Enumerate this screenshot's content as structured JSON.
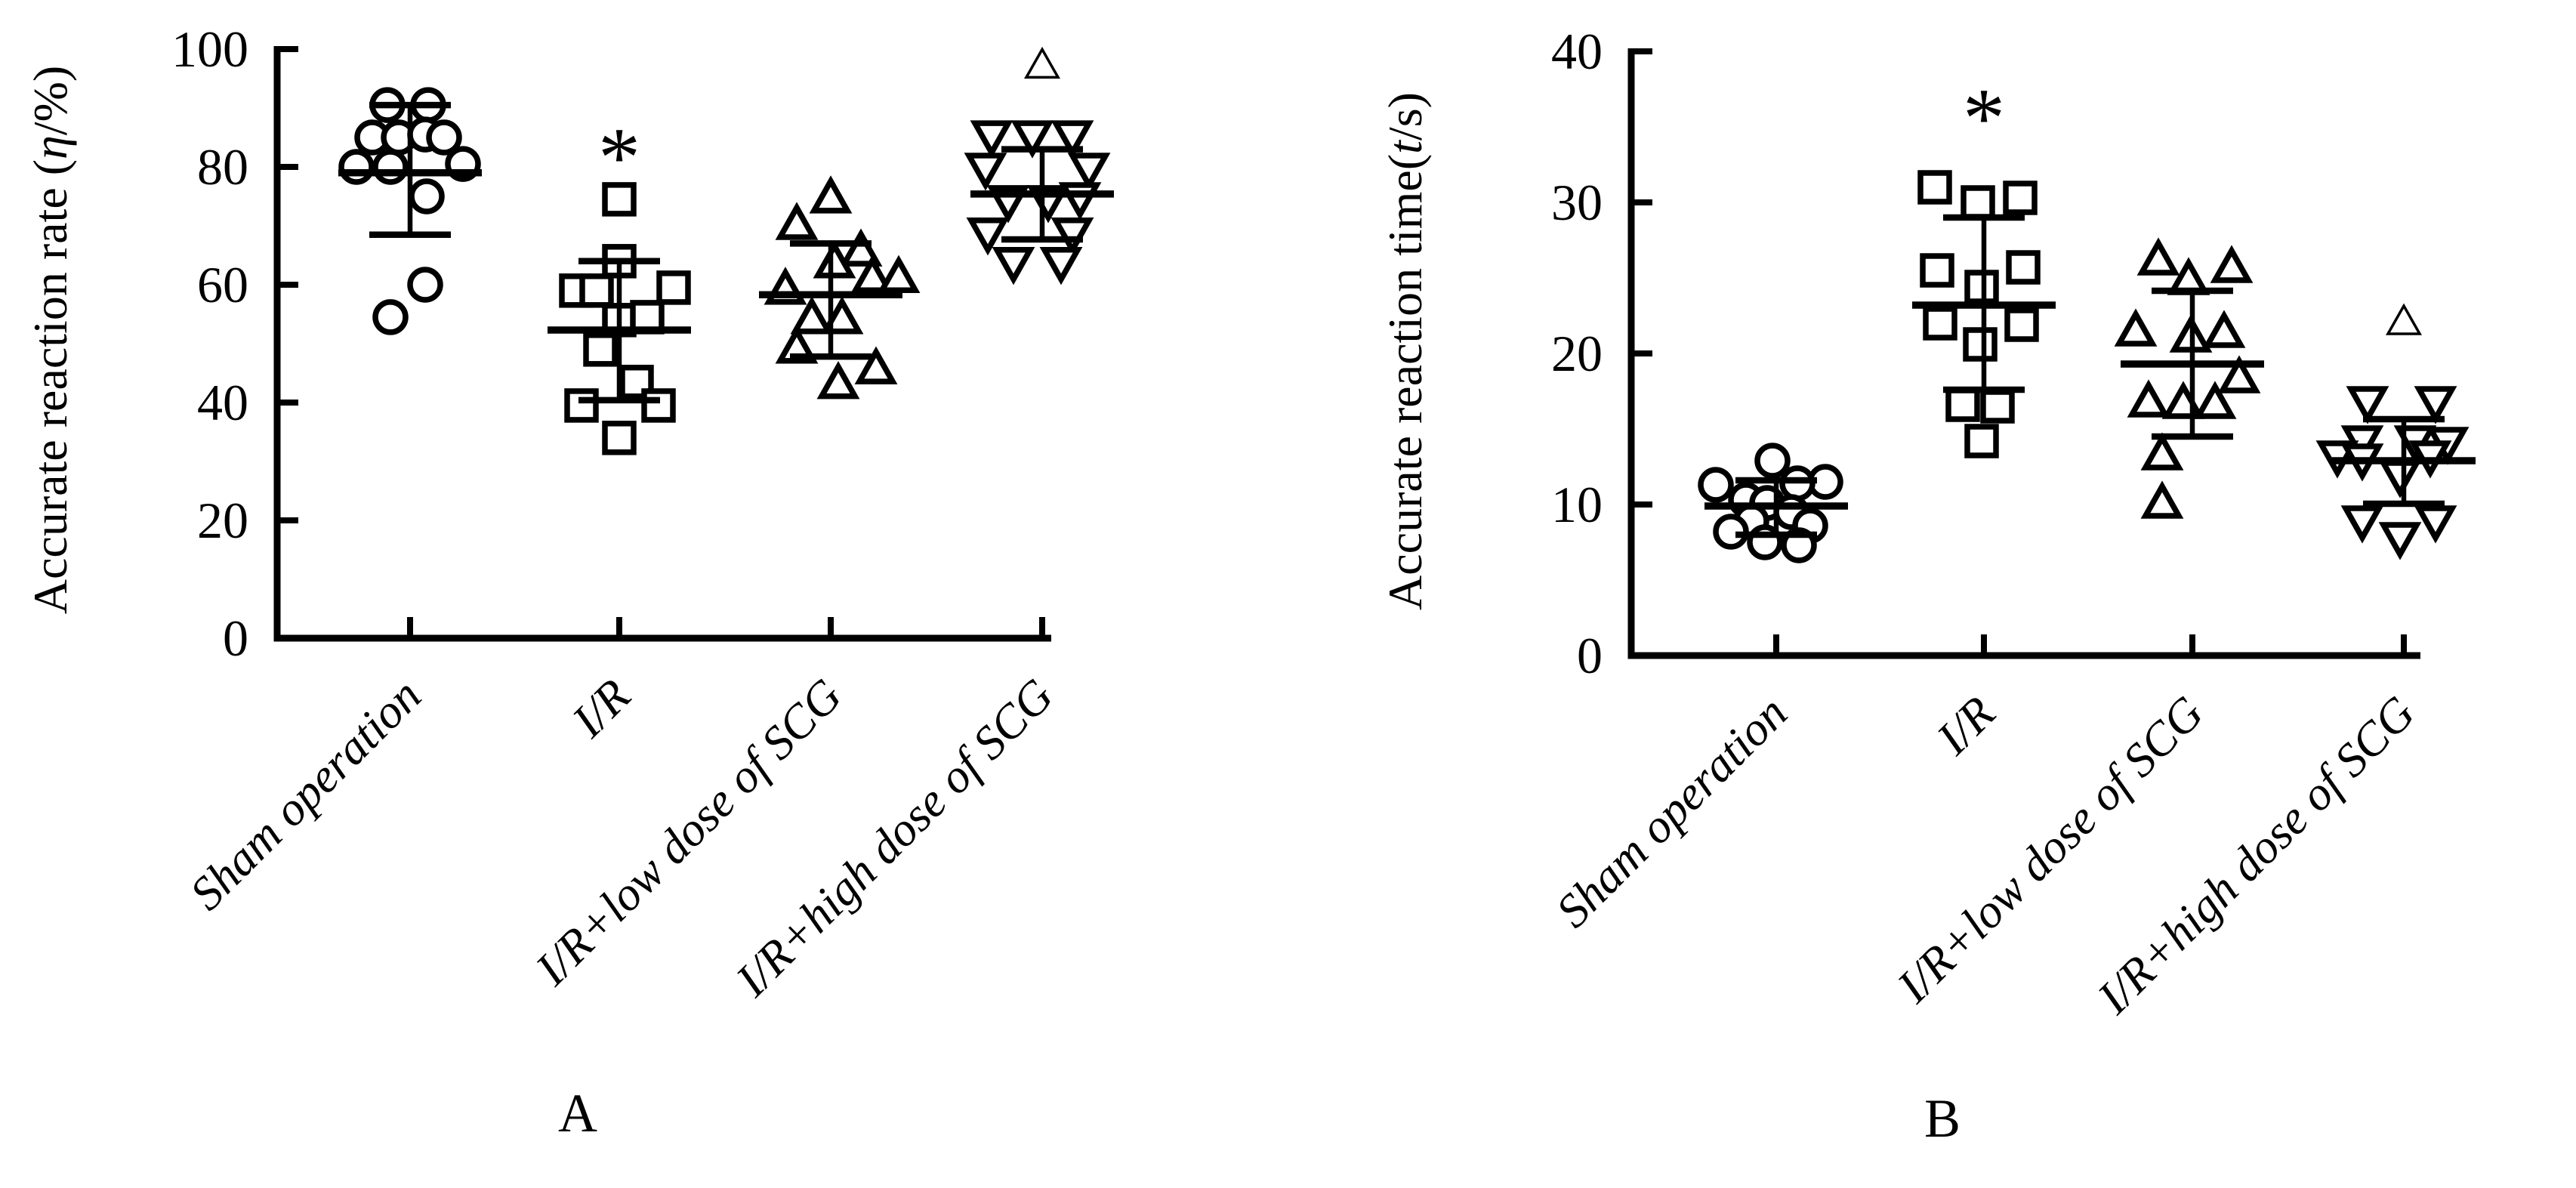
{
  "figure": {
    "background": "#ffffff",
    "ink_color": "#000000",
    "panel_letters": [
      "A",
      "B"
    ]
  },
  "chart_data": [
    {
      "type": "scatter",
      "panel_letter": "A",
      "ylabel_pre": "Accurate reaction rate (",
      "ylabel_italic": "η",
      "ylabel_post": "/%)",
      "ylim": [
        0,
        100
      ],
      "yticks": [
        0,
        20,
        40,
        60,
        80,
        100
      ],
      "grid": "off",
      "legend": "none",
      "categories": [
        "Sham operation",
        "I/R",
        "I/R+low dose of SCG",
        "I/R+high dose of SCG"
      ],
      "series": [
        {
          "name": "Sham operation",
          "marker": "circle",
          "mean": 79,
          "sd_low": 68.5,
          "sd_high": 90.5,
          "annotation": null,
          "points": [
            {
              "v": 90.5,
              "dx": -30
            },
            {
              "v": 90.5,
              "dx": 24
            },
            {
              "v": 85,
              "dx": -50
            },
            {
              "v": 85,
              "dx": -15
            },
            {
              "v": 85.5,
              "dx": 20
            },
            {
              "v": 85,
              "dx": 45
            },
            {
              "v": 80,
              "dx": -71
            },
            {
              "v": 80,
              "dx": -26
            },
            {
              "v": 80.5,
              "dx": 70
            },
            {
              "v": 75,
              "dx": 22
            },
            {
              "v": 60,
              "dx": 20
            },
            {
              "v": 54.5,
              "dx": -26
            }
          ]
        },
        {
          "name": "I/R",
          "marker": "square",
          "mean": 52.3,
          "sd_low": 40.4,
          "sd_high": 64,
          "annotation": {
            "symbol": "*",
            "v": 86
          },
          "points": [
            {
              "v": 74.5,
              "dx": 0
            },
            {
              "v": 64,
              "dx": 0
            },
            {
              "v": 59,
              "dx": -57
            },
            {
              "v": 59,
              "dx": -30
            },
            {
              "v": 59.5,
              "dx": 72
            },
            {
              "v": 54,
              "dx": 0
            },
            {
              "v": 54.5,
              "dx": 37
            },
            {
              "v": 49,
              "dx": -25
            },
            {
              "v": 43.5,
              "dx": 23
            },
            {
              "v": 39.5,
              "dx": -50
            },
            {
              "v": 39.5,
              "dx": 52
            },
            {
              "v": 34,
              "dx": 0
            }
          ]
        },
        {
          "name": "I/R+low dose of SCG",
          "marker": "triangle-up",
          "mean": 58.3,
          "sd_low": 47.8,
          "sd_high": 67,
          "annotation": null,
          "points": [
            {
              "v": 74.5,
              "dx": 0
            },
            {
              "v": 70,
              "dx": -45
            },
            {
              "v": 65.5,
              "dx": 40
            },
            {
              "v": 63.5,
              "dx": 5
            },
            {
              "v": 61,
              "dx": 55
            },
            {
              "v": 61,
              "dx": 90
            },
            {
              "v": 59,
              "dx": -60
            },
            {
              "v": 54,
              "dx": -25
            },
            {
              "v": 54,
              "dx": 15
            },
            {
              "v": 49,
              "dx": -45
            },
            {
              "v": 45.5,
              "dx": 60
            },
            {
              "v": 43,
              "dx": 10
            }
          ]
        },
        {
          "name": "I/R+high dose of SCG",
          "marker": "triangle-down",
          "mean": 75.4,
          "sd_low": 67.7,
          "sd_high": 83,
          "annotation": {
            "symbol": "triangle",
            "v": 97
          },
          "points": [
            {
              "v": 85.5,
              "dx": -67
            },
            {
              "v": 85.5,
              "dx": -13
            },
            {
              "v": 85.5,
              "dx": 40
            },
            {
              "v": 80,
              "dx": -75
            },
            {
              "v": 80,
              "dx": 62
            },
            {
              "v": 75,
              "dx": 50
            },
            {
              "v": 74.5,
              "dx": -45
            },
            {
              "v": 74.5,
              "dx": 8
            },
            {
              "v": 69,
              "dx": -72
            },
            {
              "v": 69,
              "dx": 40
            },
            {
              "v": 64,
              "dx": -38
            },
            {
              "v": 64,
              "dx": 25
            }
          ]
        }
      ]
    },
    {
      "type": "scatter",
      "panel_letter": "B",
      "ylabel_pre": "Accurate reaction time(",
      "ylabel_italic": "t",
      "ylabel_post": "/s)",
      "ylim": [
        0,
        40
      ],
      "yticks": [
        0,
        10,
        20,
        30,
        40
      ],
      "grid": "off",
      "legend": "none",
      "categories": [
        "Sham operation",
        "I/R",
        "I/R+low dose of SCG",
        "I/R+high dose of SCG"
      ],
      "series": [
        {
          "name": "Sham operation",
          "marker": "circle",
          "mean": 9.9,
          "sd_low": 8.0,
          "sd_high": 11.6,
          "annotation": null,
          "points": [
            {
              "v": 12.9,
              "dx": -5
            },
            {
              "v": 11.5,
              "dx": 65
            },
            {
              "v": 11.3,
              "dx": -80
            },
            {
              "v": 11.4,
              "dx": 28
            },
            {
              "v": 10.3,
              "dx": -40
            },
            {
              "v": 10.1,
              "dx": -12
            },
            {
              "v": 9.5,
              "dx": 20
            },
            {
              "v": 8.9,
              "dx": -33
            },
            {
              "v": 8.6,
              "dx": 45
            },
            {
              "v": 8.2,
              "dx": -60
            },
            {
              "v": 7.5,
              "dx": -15
            },
            {
              "v": 7.3,
              "dx": 30
            }
          ]
        },
        {
          "name": "I/R",
          "marker": "square",
          "mean": 23.2,
          "sd_low": 17.6,
          "sd_high": 29,
          "annotation": {
            "symbol": "*",
            "v": 37.3
          },
          "points": [
            {
              "v": 31,
              "dx": -65
            },
            {
              "v": 30.3,
              "dx": 48
            },
            {
              "v": 30,
              "dx": -8
            },
            {
              "v": 25.7,
              "dx": 52
            },
            {
              "v": 25.5,
              "dx": -62
            },
            {
              "v": 24.4,
              "dx": -3
            },
            {
              "v": 22,
              "dx": -58
            },
            {
              "v": 21.9,
              "dx": 50
            },
            {
              "v": 20.6,
              "dx": -5
            },
            {
              "v": 16.6,
              "dx": -28
            },
            {
              "v": 16.5,
              "dx": 18
            },
            {
              "v": 14.2,
              "dx": -3
            }
          ]
        },
        {
          "name": "I/R+low dose of SCG",
          "marker": "triangle-up",
          "mean": 19.3,
          "sd_low": 14.5,
          "sd_high": 24.15,
          "annotation": null,
          "points": [
            {
              "v": 26.1,
              "dx": -45
            },
            {
              "v": 25.6,
              "dx": 52
            },
            {
              "v": 24.8,
              "dx": -5
            },
            {
              "v": 21.4,
              "dx": -75
            },
            {
              "v": 21.3,
              "dx": 42
            },
            {
              "v": 21,
              "dx": -2
            },
            {
              "v": 18.3,
              "dx": 62
            },
            {
              "v": 16.7,
              "dx": -58
            },
            {
              "v": 16.6,
              "dx": -12
            },
            {
              "v": 16.6,
              "dx": 30
            },
            {
              "v": 13.2,
              "dx": -40
            },
            {
              "v": 10,
              "dx": -40
            }
          ]
        },
        {
          "name": "I/R+high dose of SCG",
          "marker": "triangle-down",
          "mean": 12.9,
          "sd_low": 10.05,
          "sd_high": 15.65,
          "annotation": {
            "symbol": "triangle",
            "v": 22
          },
          "points": [
            {
              "v": 16.9,
              "dx": -48
            },
            {
              "v": 16.9,
              "dx": 42
            },
            {
              "v": 14.3,
              "dx": -55
            },
            {
              "v": 14.3,
              "dx": 15
            },
            {
              "v": 14.2,
              "dx": 58
            },
            {
              "v": 13.3,
              "dx": -88
            },
            {
              "v": 13.3,
              "dx": 35
            },
            {
              "v": 13.1,
              "dx": -55
            },
            {
              "v": 12,
              "dx": -5
            },
            {
              "v": 9,
              "dx": -55
            },
            {
              "v": 9,
              "dx": 42
            },
            {
              "v": 7.9,
              "dx": -5
            }
          ]
        }
      ]
    }
  ]
}
